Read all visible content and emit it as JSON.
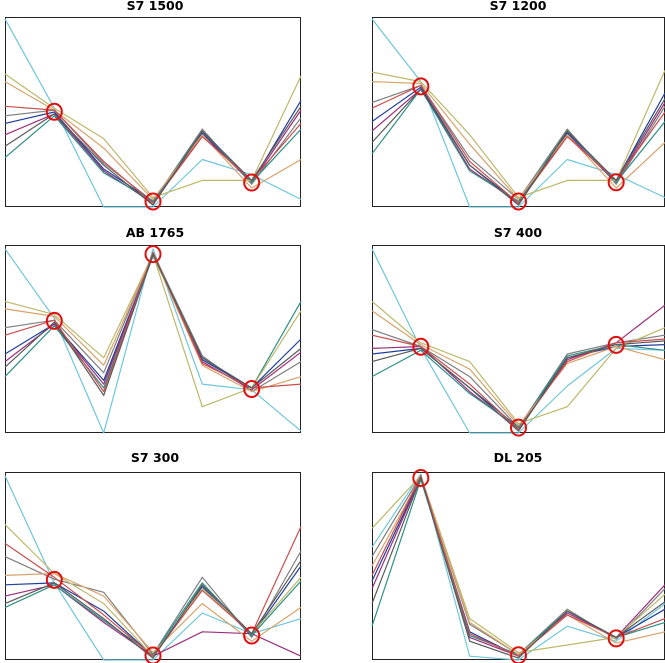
{
  "chart_data": [
    {
      "type": "line",
      "title": "S7 1500",
      "x": [
        0,
        1,
        2,
        3,
        4,
        5,
        6
      ],
      "ylim": [
        0,
        1
      ],
      "highlighted_x": [
        1,
        3,
        5
      ],
      "series": [
        {
          "color": "#6ec6dc",
          "values": [
            0.99,
            0.52,
            0.0,
            0.0,
            0.25,
            0.17,
            0.04
          ]
        },
        {
          "color": "#7f7f7f",
          "values": [
            0.48,
            0.51,
            0.23,
            0.03,
            0.41,
            0.12,
            0.47
          ]
        },
        {
          "color": "#1f3f9a",
          "values": [
            0.44,
            0.5,
            0.2,
            0.03,
            0.39,
            0.13,
            0.56
          ]
        },
        {
          "color": "#9a2f7c",
          "values": [
            0.38,
            0.49,
            0.19,
            0.02,
            0.38,
            0.13,
            0.51
          ]
        },
        {
          "color": "#2e8f86",
          "values": [
            0.26,
            0.48,
            0.18,
            0.03,
            0.4,
            0.13,
            0.41
          ]
        },
        {
          "color": "#bdb86a",
          "values": [
            0.7,
            0.52,
            0.36,
            0.05,
            0.14,
            0.14,
            0.69
          ]
        },
        {
          "color": "#d8a36a",
          "values": [
            0.66,
            0.51,
            0.31,
            0.04,
            0.38,
            0.1,
            0.25
          ]
        },
        {
          "color": "#c94e4e",
          "values": [
            0.53,
            0.51,
            0.24,
            0.02,
            0.37,
            0.14,
            0.44
          ]
        },
        {
          "color": "#5a5a5a",
          "values": [
            0.32,
            0.49,
            0.22,
            0.01,
            0.4,
            0.14,
            0.53
          ]
        }
      ]
    },
    {
      "type": "line",
      "title": "S7 1200",
      "x": [
        0,
        1,
        2,
        3,
        4,
        5,
        6
      ],
      "ylim": [
        0,
        1
      ],
      "highlighted_x": [
        1,
        3,
        5
      ],
      "series": [
        {
          "color": "#6ec6dc",
          "values": [
            0.99,
            0.66,
            0.0,
            0.0,
            0.25,
            0.17,
            0.05
          ]
        },
        {
          "color": "#7f7f7f",
          "values": [
            0.55,
            0.64,
            0.26,
            0.04,
            0.41,
            0.12,
            0.53
          ]
        },
        {
          "color": "#1f3f9a",
          "values": [
            0.45,
            0.63,
            0.22,
            0.02,
            0.39,
            0.14,
            0.6
          ]
        },
        {
          "color": "#9a2f7c",
          "values": [
            0.4,
            0.62,
            0.2,
            0.02,
            0.38,
            0.13,
            0.55
          ]
        },
        {
          "color": "#2e8f86",
          "values": [
            0.28,
            0.62,
            0.19,
            0.03,
            0.4,
            0.13,
            0.45
          ]
        },
        {
          "color": "#bdb86a",
          "values": [
            0.71,
            0.66,
            0.38,
            0.05,
            0.14,
            0.14,
            0.72
          ]
        },
        {
          "color": "#d8a36a",
          "values": [
            0.66,
            0.65,
            0.33,
            0.04,
            0.38,
            0.1,
            0.34
          ]
        },
        {
          "color": "#c94e4e",
          "values": [
            0.52,
            0.64,
            0.24,
            0.02,
            0.37,
            0.14,
            0.5
          ]
        },
        {
          "color": "#5a5a5a",
          "values": [
            0.34,
            0.62,
            0.22,
            0.01,
            0.4,
            0.14,
            0.57
          ]
        }
      ]
    },
    {
      "type": "line",
      "title": "AB 1765",
      "x": [
        0,
        1,
        2,
        3,
        4,
        5,
        6
      ],
      "ylim": [
        0,
        1
      ],
      "highlighted_x": [
        1,
        3,
        5
      ],
      "series": [
        {
          "color": "#6ec6dc",
          "values": [
            0.98,
            0.61,
            0.0,
            0.98,
            0.26,
            0.23,
            0.01
          ]
        },
        {
          "color": "#7f7f7f",
          "values": [
            0.56,
            0.6,
            0.32,
            0.96,
            0.41,
            0.22,
            0.38
          ]
        },
        {
          "color": "#1f3f9a",
          "values": [
            0.42,
            0.58,
            0.28,
            0.95,
            0.39,
            0.24,
            0.5
          ]
        },
        {
          "color": "#9a2f7c",
          "values": [
            0.38,
            0.58,
            0.26,
            0.95,
            0.38,
            0.23,
            0.43
          ]
        },
        {
          "color": "#2e8f86",
          "values": [
            0.3,
            0.57,
            0.24,
            0.94,
            0.4,
            0.24,
            0.7
          ]
        },
        {
          "color": "#bdb86a",
          "values": [
            0.7,
            0.63,
            0.4,
            0.95,
            0.14,
            0.24,
            0.65
          ]
        },
        {
          "color": "#d8a36a",
          "values": [
            0.66,
            0.62,
            0.36,
            0.95,
            0.36,
            0.22,
            0.3
          ]
        },
        {
          "color": "#c94e4e",
          "values": [
            0.52,
            0.6,
            0.22,
            0.96,
            0.37,
            0.24,
            0.26
          ]
        },
        {
          "color": "#5a5a5a",
          "values": [
            0.35,
            0.59,
            0.2,
            0.95,
            0.4,
            0.24,
            0.45
          ]
        }
      ]
    },
    {
      "type": "line",
      "title": "S7 400",
      "x": [
        0,
        1,
        2,
        3,
        4,
        5,
        6
      ],
      "ylim": [
        0,
        1
      ],
      "highlighted_x": [
        1,
        3,
        5
      ],
      "series": [
        {
          "color": "#6ec6dc",
          "values": [
            0.98,
            0.45,
            0.0,
            0.0,
            0.25,
            0.45,
            0.44
          ]
        },
        {
          "color": "#7f7f7f",
          "values": [
            0.55,
            0.46,
            0.3,
            0.03,
            0.42,
            0.48,
            0.52
          ]
        },
        {
          "color": "#1f3f9a",
          "values": [
            0.42,
            0.45,
            0.24,
            0.03,
            0.4,
            0.46,
            0.47
          ]
        },
        {
          "color": "#9a2f7c",
          "values": [
            0.45,
            0.46,
            0.22,
            0.02,
            0.39,
            0.48,
            0.68
          ]
        },
        {
          "color": "#2e8f86",
          "values": [
            0.3,
            0.44,
            0.21,
            0.03,
            0.41,
            0.47,
            0.44
          ]
        },
        {
          "color": "#bdb86a",
          "values": [
            0.7,
            0.48,
            0.38,
            0.05,
            0.14,
            0.45,
            0.56
          ]
        },
        {
          "color": "#d8a36a",
          "values": [
            0.65,
            0.47,
            0.34,
            0.04,
            0.37,
            0.46,
            0.39
          ]
        },
        {
          "color": "#c94e4e",
          "values": [
            0.52,
            0.46,
            0.26,
            0.02,
            0.38,
            0.48,
            0.5
          ]
        },
        {
          "color": "#5a5a5a",
          "values": [
            0.38,
            0.45,
            0.24,
            0.01,
            0.4,
            0.47,
            0.49
          ]
        }
      ]
    },
    {
      "type": "line",
      "title": "S7 300",
      "x": [
        0,
        1,
        2,
        3,
        4,
        5,
        6
      ],
      "ylim": [
        0,
        1
      ],
      "highlighted_x": [
        1,
        3,
        5
      ],
      "series": [
        {
          "color": "#6ec6dc",
          "values": [
            0.98,
            0.41,
            0.0,
            0.0,
            0.25,
            0.14,
            0.22
          ]
        },
        {
          "color": "#7f7f7f",
          "values": [
            0.55,
            0.43,
            0.36,
            0.03,
            0.44,
            0.12,
            0.58
          ]
        },
        {
          "color": "#1f3f9a",
          "values": [
            0.4,
            0.41,
            0.26,
            0.02,
            0.39,
            0.13,
            0.5
          ]
        },
        {
          "color": "#9a2f7c",
          "values": [
            0.34,
            0.4,
            0.2,
            0.02,
            0.15,
            0.14,
            0.02
          ]
        },
        {
          "color": "#2e8f86",
          "values": [
            0.28,
            0.4,
            0.21,
            0.03,
            0.41,
            0.13,
            0.42
          ]
        },
        {
          "color": "#bdb86a",
          "values": [
            0.72,
            0.46,
            0.3,
            0.02,
            0.38,
            0.14,
            0.44
          ]
        },
        {
          "color": "#d8a36a",
          "values": [
            0.45,
            0.46,
            0.34,
            0.04,
            0.3,
            0.1,
            0.28
          ]
        },
        {
          "color": "#c94e4e",
          "values": [
            0.62,
            0.44,
            0.24,
            0.02,
            0.37,
            0.14,
            0.71
          ]
        },
        {
          "color": "#5a5a5a",
          "values": [
            0.3,
            0.41,
            0.22,
            0.01,
            0.4,
            0.14,
            0.53
          ]
        }
      ]
    },
    {
      "type": "line",
      "title": "DL 205",
      "x": [
        0,
        1,
        2,
        3,
        4,
        5,
        6
      ],
      "ylim": [
        0,
        1
      ],
      "highlighted_x": [
        1,
        3,
        5
      ],
      "series": [
        {
          "color": "#6ec6dc",
          "values": [
            0.6,
            0.99,
            0.02,
            0.0,
            0.18,
            0.1,
            0.3
          ]
        },
        {
          "color": "#7f7f7f",
          "values": [
            0.55,
            0.98,
            0.19,
            0.03,
            0.27,
            0.11,
            0.38
          ]
        },
        {
          "color": "#1f3f9a",
          "values": [
            0.42,
            0.97,
            0.15,
            0.02,
            0.26,
            0.12,
            0.27
          ]
        },
        {
          "color": "#9a2f7c",
          "values": [
            0.38,
            0.97,
            0.12,
            0.02,
            0.25,
            0.12,
            0.4
          ]
        },
        {
          "color": "#2e8f86",
          "values": [
            0.18,
            0.96,
            0.13,
            0.03,
            0.26,
            0.12,
            0.2
          ]
        },
        {
          "color": "#bdb86a",
          "values": [
            0.7,
            0.98,
            0.22,
            0.04,
            0.08,
            0.12,
            0.35
          ]
        },
        {
          "color": "#d8a36a",
          "values": [
            0.5,
            0.97,
            0.2,
            0.03,
            0.24,
            0.09,
            0.15
          ]
        },
        {
          "color": "#c94e4e",
          "values": [
            0.45,
            0.98,
            0.14,
            0.02,
            0.24,
            0.12,
            0.22
          ]
        },
        {
          "color": "#5a5a5a",
          "values": [
            0.3,
            0.97,
            0.1,
            0.01,
            0.26,
            0.12,
            0.31
          ]
        }
      ]
    }
  ]
}
